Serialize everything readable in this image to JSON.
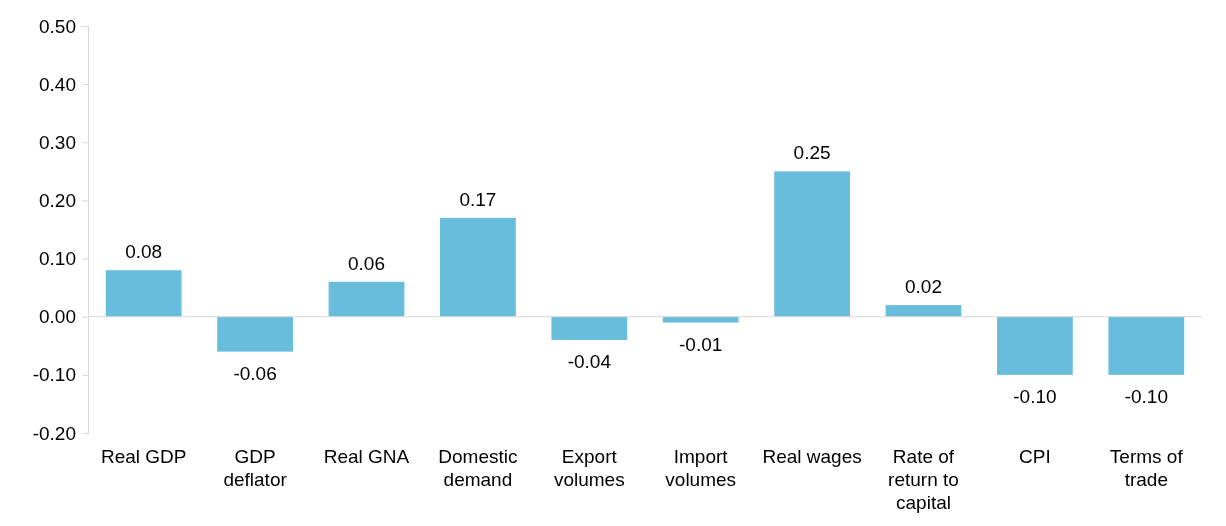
{
  "chart_data": {
    "type": "bar",
    "categories": [
      "Real GDP",
      "GDP deflator",
      "Real GNA",
      "Domestic demand",
      "Export volumes",
      "Import volumes",
      "Real wages",
      "Rate of return to capital",
      "CPI",
      "Terms of trade"
    ],
    "values": [
      0.08,
      -0.06,
      0.06,
      0.17,
      -0.04,
      -0.01,
      0.25,
      0.02,
      -0.1,
      -0.1
    ],
    "color": "#67bddb",
    "ylim": [
      -0.2,
      0.5
    ],
    "yticks": [
      {
        "value": -0.2,
        "label": "-0.20"
      },
      {
        "value": -0.1,
        "label": "-0.10"
      },
      {
        "value": 0,
        "label": "0.00"
      },
      {
        "value": 0.1,
        "label": "0.10"
      },
      {
        "value": 0.2,
        "label": "0.20"
      },
      {
        "value": 0.3,
        "label": "0.30"
      },
      {
        "value": 0.4,
        "label": "0.40"
      },
      {
        "value": 0.5,
        "label": "0.50"
      }
    ],
    "value_labels": [
      "0.08",
      "-0.06",
      "0.06",
      "0.17",
      "-0.04",
      "-0.01",
      "0.25",
      "0.02",
      "-0.10",
      "-0.10"
    ]
  }
}
